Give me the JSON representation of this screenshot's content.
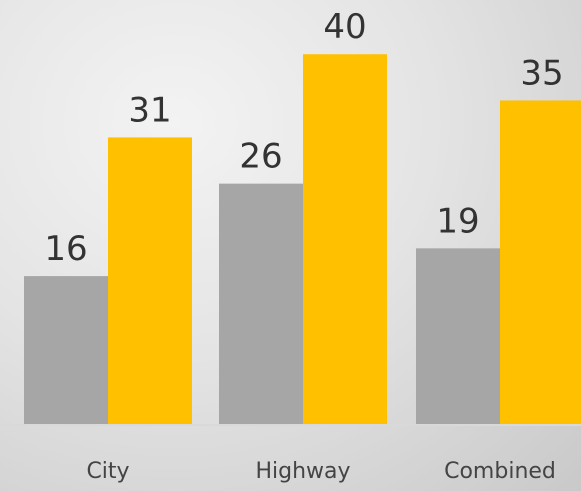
{
  "chart_data": {
    "type": "bar",
    "title": "",
    "xlabel": "",
    "ylabel": "",
    "categories": [
      "City",
      "Highway",
      "Combined"
    ],
    "series": [
      {
        "values": [
          16,
          26,
          19
        ],
        "color": "#a6a6a6"
      },
      {
        "values": [
          31,
          40,
          35
        ],
        "color": "#ffc000"
      }
    ],
    "ylim": [
      0,
      45
    ],
    "grid": false,
    "legend": "none"
  }
}
